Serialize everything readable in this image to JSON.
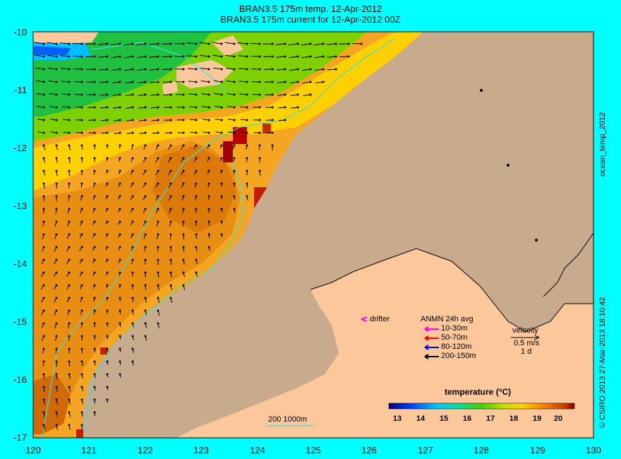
{
  "title_line1": "BRAN3.5 175m temp. 12-Apr-2012",
  "title_line2": "BRAN3.5 175m current for 12-Apr-2012 00Z",
  "side_label_right": "ocean_temp_2012",
  "side_label_credit": "© CSIRO 2013   27-Mar-2013 18:10:42",
  "y_ticks": [
    "-10",
    "-11",
    "-12",
    "-13",
    "-14",
    "-15",
    "-16",
    "-17"
  ],
  "x_ticks": [
    "120",
    "121",
    "122",
    "123",
    "124",
    "125",
    "126",
    "127",
    "128",
    "129",
    "130"
  ],
  "drifter_label": "drifter",
  "anmn_title": "ANMN 24h avg",
  "anmn_items": [
    {
      "label": "10-30m",
      "color": "#ff00ff"
    },
    {
      "label": "50-70m",
      "color": "#ff0000"
    },
    {
      "label": "80-120m",
      "color": "#0000ff"
    },
    {
      "label": "200-150m",
      "color": "#000000"
    }
  ],
  "velocity_label": "velocity",
  "velocity_scale": "0.5 m/s",
  "velocity_time": "1 d",
  "isobath_label": "200  1000m",
  "colorbar_title": "temperature (°C)",
  "colorbar_ticks": [
    "13",
    "14",
    "15",
    "16",
    "17",
    "18",
    "19",
    "20"
  ],
  "colors": {
    "land": "#c8aa8c",
    "coast_land": "#fcc79b",
    "isobath": "#3ce0d0"
  }
}
